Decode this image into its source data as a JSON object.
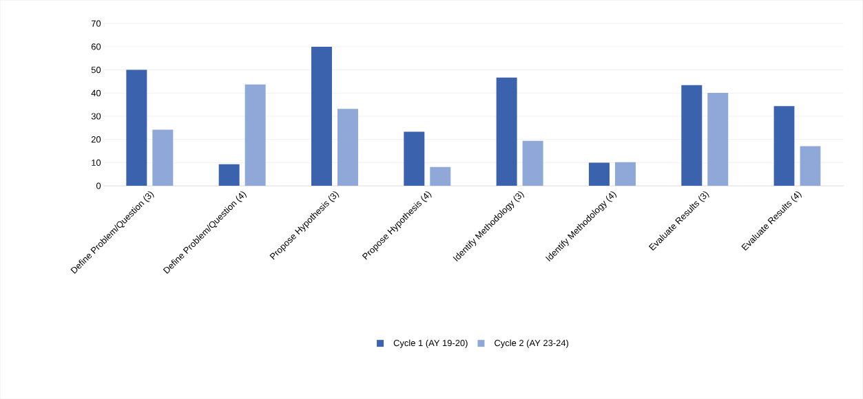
{
  "chart_data": {
    "type": "bar",
    "categories": [
      "Define Problem/Question (3)",
      "Define Problem/Question (4)",
      "Propose Hypothesis (3)",
      "Propose Hypothesis (4)",
      "Identify Methodology (3)",
      "Identify Methodology (4)",
      "Evaluate Results (3)",
      "Evaluate Results (4)"
    ],
    "series": [
      {
        "name": "Cycle 1 (AY 19-20)",
        "color": "#3a62ad",
        "values": [
          50,
          9.3,
          60,
          23.3,
          46.7,
          10,
          43.4,
          34.4
        ]
      },
      {
        "name": "Cycle 2 (AY 23-24)",
        "color": "#8fa8d8",
        "values": [
          24.2,
          43.7,
          33.2,
          8.1,
          19.4,
          10.2,
          40.1,
          17.1
        ]
      }
    ],
    "ylim": [
      0,
      70
    ],
    "yticks": [
      0,
      10,
      20,
      30,
      40,
      50,
      60,
      70
    ],
    "grid": "y",
    "legend": "bottom"
  }
}
